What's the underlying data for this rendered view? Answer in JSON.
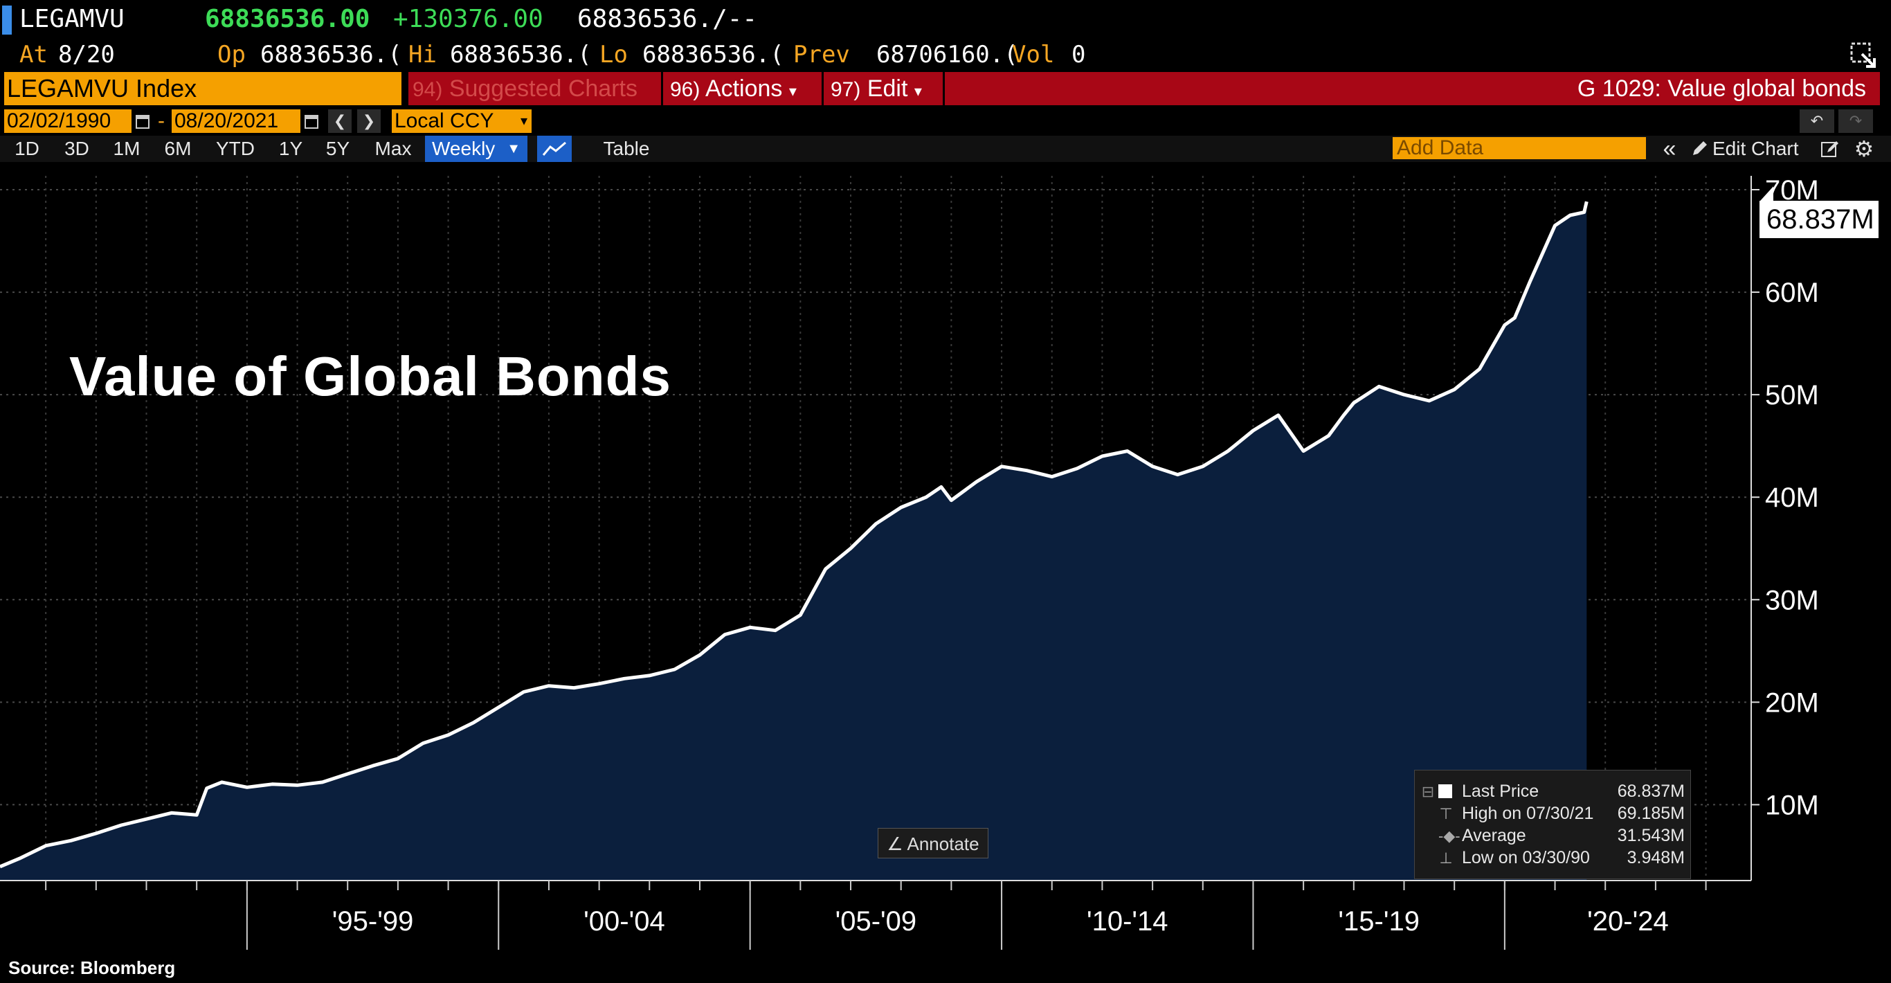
{
  "header": {
    "ticker": "LEGAMVU",
    "last": "68836536.00",
    "change": "+130376.00",
    "bid_ask": "68836536./--",
    "at_label": "At",
    "at_date": "8/20",
    "op_label": "Op",
    "op_value": "68836536.(",
    "hi_label": "Hi",
    "hi_value": "68836536.(",
    "lo_label": "Lo",
    "lo_value": "68836536.(",
    "prev_label": "Prev",
    "prev_value": "68706160.(",
    "vol_label": "Vol",
    "vol_value": "0"
  },
  "menu": {
    "index_name": "LEGAMVU Index",
    "suggested_num": "94)",
    "suggested_label": "Suggested Charts",
    "actions_num": "96)",
    "actions_label": "Actions",
    "edit_num": "97)",
    "edit_label": "Edit",
    "chart_title": "G 1029: Value global bonds"
  },
  "controls": {
    "start_date": "02/02/1990",
    "end_date": "08/20/2021",
    "dash": "-",
    "currency": "Local CCY",
    "periods": [
      "1D",
      "3D",
      "1M",
      "6M",
      "YTD",
      "1Y",
      "5Y",
      "Max"
    ],
    "frequency": "Weekly",
    "table_label": "Table",
    "add_data_placeholder": "Add Data",
    "edit_chart_label": "Edit Chart"
  },
  "overlay": {
    "title": "Value of Global Bonds",
    "source": "Source: Bloomberg",
    "annotate_label": "Annotate",
    "last_price_tag": "68.837M"
  },
  "legend": {
    "last_price_label": "Last Price",
    "last_price_value": "68.837M",
    "high_label": "High on 07/30/21",
    "high_value": "69.185M",
    "average_label": "Average",
    "average_value": "31.543M",
    "low_label": "Low on 03/30/90",
    "low_value": "3.948M"
  },
  "colors": {
    "accent_orange": "#f5a000",
    "menu_red": "#a80716",
    "area_fill": "#0b1f3d",
    "line": "#ffffff",
    "positive_green": "#3ddc57",
    "active_tab": "#1c5fc7"
  },
  "chart_data": {
    "type": "area",
    "title": "Value of Global Bonds",
    "xlabel": "",
    "ylabel": "",
    "x_tick_labels": [
      "'95-'99",
      "'00-'04",
      "'05-'09",
      "'10-'14",
      "'15-'19",
      "'20-'24"
    ],
    "y_tick_labels": [
      "10M",
      "20M",
      "30M",
      "40M",
      "50M",
      "60M",
      "70M"
    ],
    "y_ticks": [
      10,
      20,
      30,
      40,
      50,
      60,
      70
    ],
    "y_unit": "M",
    "xlim": [
      1990.09,
      2024.9
    ],
    "ylim": [
      2.6,
      70
    ],
    "grid": true,
    "series": [
      {
        "name": "Last Price",
        "x": [
          1990.09,
          1990.5,
          1991.0,
          1991.5,
          1992.0,
          1992.5,
          1993.0,
          1993.5,
          1994.0,
          1994.2,
          1994.5,
          1995.0,
          1995.5,
          1996.0,
          1996.5,
          1997.0,
          1997.5,
          1998.0,
          1998.5,
          1999.0,
          1999.5,
          2000.0,
          2000.5,
          2001.0,
          2001.5,
          2002.0,
          2002.5,
          2003.0,
          2003.5,
          2004.0,
          2004.5,
          2005.0,
          2005.5,
          2006.0,
          2006.5,
          2007.0,
          2007.5,
          2008.0,
          2008.5,
          2008.8,
          2009.0,
          2009.5,
          2010.0,
          2010.5,
          2011.0,
          2011.5,
          2012.0,
          2012.5,
          2013.0,
          2013.5,
          2014.0,
          2014.5,
          2015.0,
          2015.5,
          2016.0,
          2016.5,
          2016.8,
          2017.0,
          2017.5,
          2018.0,
          2018.5,
          2019.0,
          2019.5,
          2020.0,
          2020.2,
          2020.5,
          2021.0,
          2021.3,
          2021.58,
          2021.63
        ],
        "values": [
          3.95,
          4.8,
          6.0,
          6.5,
          7.2,
          8.0,
          8.6,
          9.2,
          9.0,
          11.6,
          12.2,
          11.7,
          12.0,
          11.9,
          12.2,
          13.0,
          13.8,
          14.5,
          16.0,
          16.8,
          18.0,
          19.5,
          21.0,
          21.6,
          21.4,
          21.8,
          22.3,
          22.6,
          23.2,
          24.6,
          26.6,
          27.3,
          27.0,
          28.5,
          33.0,
          35.0,
          37.4,
          39.0,
          40.0,
          41.0,
          39.7,
          41.5,
          43.0,
          42.6,
          42.0,
          42.8,
          44.0,
          44.5,
          43.0,
          42.2,
          43.0,
          44.5,
          46.5,
          48.0,
          44.5,
          46.0,
          48.0,
          49.2,
          50.8,
          50.0,
          49.4,
          50.5,
          52.5,
          56.8,
          57.5,
          61.0,
          66.5,
          67.5,
          67.8,
          68.837
        ]
      }
    ]
  }
}
